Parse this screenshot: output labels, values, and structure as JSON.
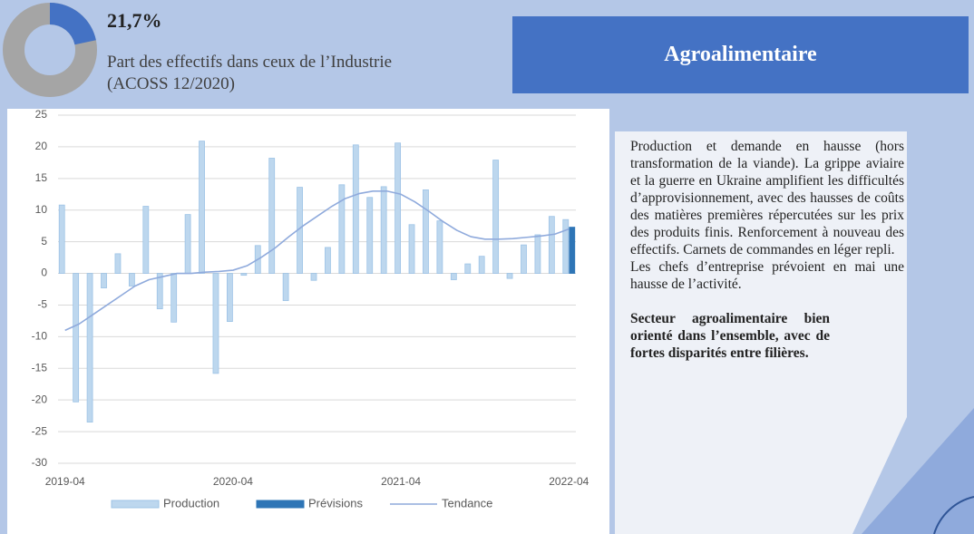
{
  "header": {
    "percent": {
      "value": 21.7,
      "label": "21,7%"
    },
    "caption_line1": "Part des effectifs dans ceux de l’Industrie",
    "caption_line2": "(ACOSS 12/2020)",
    "sector": "Agroalimentaire"
  },
  "text": {
    "paragraph1": "Production et demande en hausse (hors transformation de la viande). La grippe aviaire et la guerre en Ukraine amplifient les difficultés d’approvisionnement, avec des hausses de coûts des matières premières répercutées sur les prix des produits finis. Renforcement à nouveau des effectifs. Carnets de commandes en léger repli.",
    "paragraph2": "Les chefs d’entreprise prévoient en mai une hausse de l’activité.",
    "conclusion": "Secteur agroalimentaire bien orienté dans l’ensemble, avec de fortes disparités entre filières."
  },
  "chart_data": {
    "type": "bar",
    "categories": [
      "2019-04",
      null,
      null,
      null,
      null,
      null,
      null,
      null,
      null,
      null,
      null,
      null,
      "2020-04",
      null,
      null,
      null,
      null,
      null,
      null,
      null,
      null,
      null,
      null,
      null,
      "2021-04",
      null,
      null,
      null,
      null,
      null,
      null,
      null,
      null,
      null,
      null,
      null,
      "2022-04"
    ],
    "series": [
      {
        "name": "Production",
        "type": "bar",
        "color": "#bdd7ee",
        "values": [
          10.8,
          -20.3,
          -23.5,
          -2.3,
          3.1,
          -2.0,
          10.6,
          -5.6,
          -7.7,
          9.3,
          20.9,
          -15.8,
          -7.6,
          -0.3,
          4.4,
          18.2,
          -4.3,
          13.6,
          -1.1,
          4.1,
          14.0,
          20.3,
          12.0,
          13.7,
          20.6,
          7.7,
          13.2,
          8.3,
          -1.0,
          1.5,
          2.7,
          17.9,
          -0.8,
          4.5,
          6.1,
          9.0,
          8.5
        ]
      },
      {
        "name": "Prévisions",
        "type": "bar",
        "color": "#2e75b6",
        "values": [
          null,
          null,
          null,
          null,
          null,
          null,
          null,
          null,
          null,
          null,
          null,
          null,
          null,
          null,
          null,
          null,
          null,
          null,
          null,
          null,
          null,
          null,
          null,
          null,
          null,
          null,
          null,
          null,
          null,
          null,
          null,
          null,
          null,
          null,
          null,
          null,
          7.3
        ]
      },
      {
        "name": "Tendance",
        "type": "line",
        "color": "#8faadc",
        "values": [
          -9.0,
          -8.0,
          -6.5,
          -5.0,
          -3.5,
          -2.0,
          -1.0,
          -0.5,
          0.0,
          0.0,
          0.2,
          0.3,
          0.5,
          1.2,
          2.5,
          4.0,
          5.8,
          7.5,
          9.0,
          10.5,
          11.8,
          12.6,
          13.0,
          13.0,
          12.5,
          11.3,
          9.8,
          8.2,
          6.8,
          5.8,
          5.4,
          5.4,
          5.5,
          5.7,
          5.9,
          6.2,
          7.0
        ]
      }
    ],
    "ylim": [
      -30,
      25
    ],
    "yticks": [
      -30,
      -25,
      -20,
      -15,
      -10,
      -5,
      0,
      5,
      10,
      15,
      20,
      25
    ],
    "grid": true,
    "legend": "bottom"
  }
}
